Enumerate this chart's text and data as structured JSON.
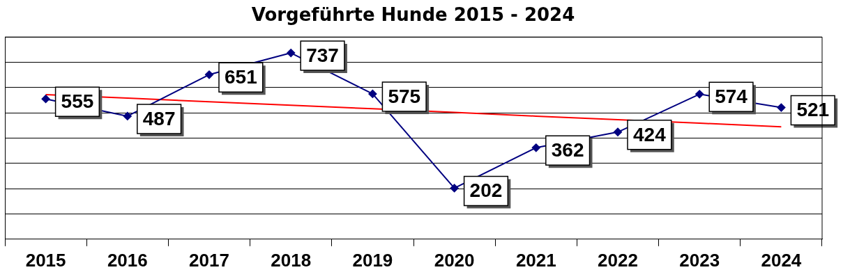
{
  "chart_data": {
    "type": "line",
    "title": "Vorgeführte Hunde 2015 - 2024",
    "categories": [
      "2015",
      "2016",
      "2017",
      "2018",
      "2019",
      "2020",
      "2021",
      "2022",
      "2023",
      "2024"
    ],
    "series": [
      {
        "color": "#000080",
        "values": [
          555,
          487,
          651,
          737,
          575,
          202,
          362,
          424,
          574,
          521
        ],
        "value_labels": [
          "555",
          "487",
          "651",
          "737",
          "575",
          "202",
          "362",
          "424",
          "574",
          "521"
        ],
        "marker": "diamond"
      },
      {
        "type": "line",
        "color": "#ff0000",
        "values": [
          572,
          558,
          544,
          530,
          516,
          502,
          487,
          473,
          459,
          445
        ],
        "marker": "none"
      }
    ],
    "ylim": [
      0,
      800
    ],
    "yticks": [
      {
        "value": 0,
        "label": null
      },
      {
        "value": 100,
        "label": null
      },
      {
        "value": 200,
        "label": null
      },
      {
        "value": 300,
        "label": null
      },
      {
        "value": 400,
        "label": null
      },
      {
        "value": 500,
        "label": null
      },
      {
        "value": 600,
        "label": null
      },
      {
        "value": 700,
        "label": null
      },
      {
        "value": 800,
        "label": null
      }
    ],
    "tick_labels": "x",
    "grid": "y",
    "legend": false,
    "line_style": "solid"
  }
}
